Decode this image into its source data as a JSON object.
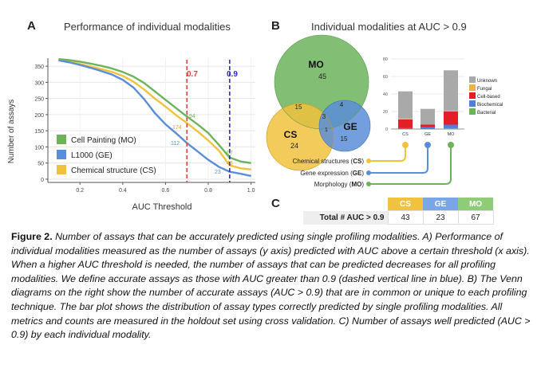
{
  "panelA": {
    "label": "A",
    "title": "Performance of individual modalities",
    "ylabel": "Number of assays",
    "xlabel": "AUC Threshold",
    "threshold_labels": [
      "0.7",
      "0.9"
    ],
    "annotations": [
      "194",
      "174",
      "112",
      "67",
      "43",
      "23"
    ],
    "legend": [
      "Cell Painting (MO)",
      "L1000 (GE)",
      "Chemical structure (CS)"
    ]
  },
  "chart_data": {
    "type": "line",
    "x": [
      0.1,
      0.15,
      0.2,
      0.25,
      0.3,
      0.35,
      0.4,
      0.45,
      0.5,
      0.55,
      0.6,
      0.65,
      0.7,
      0.75,
      0.8,
      0.85,
      0.9,
      0.95,
      1.0
    ],
    "series": [
      {
        "name": "Cell Painting (MO)",
        "color": "#6cb35a",
        "values": [
          372,
          369,
          364,
          358,
          351,
          343,
          332,
          318,
          298,
          272,
          246,
          220,
          194,
          170,
          143,
          106,
          67,
          55,
          50
        ]
      },
      {
        "name": "L1000 (GE)",
        "color": "#5b8ed8",
        "values": [
          368,
          362,
          354,
          345,
          335,
          324,
          308,
          284,
          248,
          205,
          170,
          142,
          112,
          86,
          60,
          38,
          23,
          17,
          10
        ]
      },
      {
        "name": "Chemical structure (CS)",
        "color": "#f0c23e",
        "values": [
          370,
          365,
          357,
          349,
          341,
          332,
          320,
          302,
          278,
          250,
          225,
          198,
          174,
          148,
          120,
          88,
          43,
          34,
          30
        ]
      }
    ],
    "xlim": [
      0.1,
      1.0
    ],
    "ylim": [
      0,
      360
    ],
    "xticks": [
      "0.2",
      "0.4",
      "0.6",
      "0.8",
      "1.0"
    ],
    "yticks": [
      "0",
      "50",
      "100",
      "150",
      "200",
      "250",
      "300",
      "350"
    ],
    "vlines": [
      {
        "x": 0.7,
        "color": "#e8403b"
      },
      {
        "x": 0.9,
        "color": "#2a2ad0"
      }
    ]
  },
  "panelB": {
    "label": "B",
    "title": "Individual modalities at AUC > 0.9",
    "venn": {
      "MO": {
        "name": "MO",
        "count": "45"
      },
      "CS": {
        "name": "CS",
        "count": "24"
      },
      "GE": {
        "name": "GE",
        "count": "15"
      },
      "MO_CS": "15",
      "MO_GE": "4",
      "ALL": "3",
      "CS_GE": "1"
    },
    "bar": {
      "yticks": [
        "0",
        "20",
        "40",
        "60",
        "80"
      ],
      "categories": [
        "CS",
        "GE",
        "MO"
      ],
      "legend": [
        "Unknown",
        "Fungal",
        "Cell-based",
        "Biochemical",
        "Bacterial"
      ],
      "colors": {
        "Unknown": "#a9a9a9",
        "Fungal": "#f0b23e",
        "Cell-based": "#e21e26",
        "Biochemical": "#4f7fd8",
        "Bacterial": "#6cb35a"
      },
      "stacks": [
        {
          "category": "CS",
          "Bacterial": 0,
          "Biochemical": 1,
          "Cell-based": 10,
          "Fungal": 1,
          "Unknown": 31
        },
        {
          "category": "GE",
          "Bacterial": 0,
          "Biochemical": 2,
          "Cell-based": 3,
          "Fungal": 0,
          "Unknown": 18
        },
        {
          "category": "MO",
          "Bacterial": 1,
          "Biochemical": 4,
          "Cell-based": 15,
          "Fungal": 1,
          "Unknown": 46
        }
      ]
    },
    "legend_rows": [
      {
        "prefix": "Chemical structures (",
        "abbr": "CS",
        "suffix": ")",
        "color": "#f0c23e"
      },
      {
        "prefix": "Gene expression (",
        "abbr": "GE",
        "suffix": ")",
        "color": "#5b8ed8"
      },
      {
        "prefix": "Morphology (",
        "abbr": "MO",
        "suffix": ")",
        "color": "#6cb35a"
      }
    ]
  },
  "panelC": {
    "label": "C",
    "row_label": "Total # AUC > 0.9",
    "headers": [
      "CS",
      "GE",
      "MO"
    ],
    "header_colors": [
      "#f0c23e",
      "#7aa5e8",
      "#8fcc78"
    ],
    "values": [
      "43",
      "23",
      "67"
    ]
  },
  "caption": {
    "lead": "Figure 2.",
    "body": " Number of assays that can be accurately predicted using single profiling modalities. A) Performance of individual modalities measured as the number of assays (y axis) predicted with AUC above a certain threshold (x axis). When a higher AUC threshold is needed, the number of assays that can be predicted decreases for all profiling modalities. We define accurate assays as those with AUC greater than 0.9 (dashed vertical line in blue). B) The Venn diagrams on the right show the number of accurate assays (AUC > 0.9) that are in common or unique to each profiling technique. The bar plot shows the distribution of assay types correctly predicted by single profiling modalities. All metrics and counts are measured in the holdout set using cross validation. C) Number of assays well predicted (AUC > 0.9) by each individual modality."
  }
}
